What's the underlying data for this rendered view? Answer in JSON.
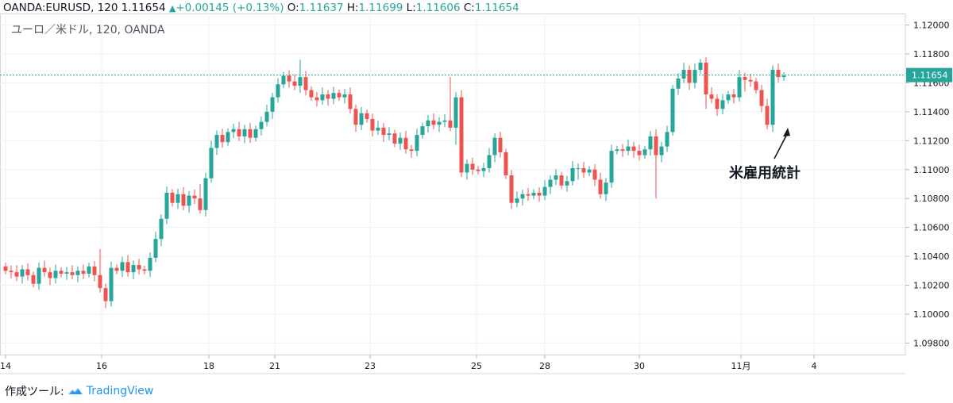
{
  "header": {
    "symbol": "OANDA:EURUSD, 120",
    "last": "1.11654",
    "change": "+0.00145 (+0.13%)",
    "o_label": "O:",
    "o_val": "1.11637",
    "h_label": "H:",
    "h_val": "1.11699",
    "l_label": "L:",
    "l_val": "1.11606",
    "c_label": "C:",
    "c_val": "1.11654"
  },
  "footer": {
    "made_with": "作成ツール:",
    "brand": "TradingView"
  },
  "colors": {
    "up": "#26a69a",
    "down": "#ef5350",
    "grid": "#edf0f5",
    "price_line": "#26a69a",
    "annotation": "#131722"
  },
  "chart_data": {
    "type": "candlestick",
    "title": "ユーロ／米ドル, 120, OANDA",
    "ylim": [
      1.0972,
      1.1208
    ],
    "y_ticks": [
      "1.12000",
      "1.11800",
      "1.11600",
      "1.11400",
      "1.11200",
      "1.11000",
      "1.10800",
      "1.10600",
      "1.10400",
      "1.10200",
      "1.10000",
      "1.09800"
    ],
    "x_ticks": [
      "14",
      "16",
      "18",
      "21",
      "23",
      "25",
      "28",
      "30",
      "11月",
      "4"
    ],
    "last_price": "1.11654",
    "annotation": "米雇用統計",
    "closes": [
      1.103,
      1.1029,
      1.1026,
      1.1031,
      1.1027,
      1.1021,
      1.1032,
      1.1029,
      1.1025,
      1.103,
      1.1028,
      1.1029,
      1.1027,
      1.103,
      1.1028,
      1.1033,
      1.1027,
      1.1018,
      1.1009,
      1.1032,
      1.103,
      1.1036,
      1.1029,
      1.1034,
      1.1031,
      1.103,
      1.1039,
      1.1052,
      1.1066,
      1.1084,
      1.1077,
      1.1083,
      1.1075,
      1.1082,
      1.108,
      1.1072,
      1.1094,
      1.1115,
      1.1124,
      1.1119,
      1.1126,
      1.1128,
      1.1123,
      1.1128,
      1.1122,
      1.1128,
      1.1133,
      1.114,
      1.115,
      1.1159,
      1.1165,
      1.1161,
      1.1158,
      1.1164,
      1.1155,
      1.115,
      1.1148,
      1.1152,
      1.1149,
      1.1153,
      1.115,
      1.1152,
      1.1142,
      1.1131,
      1.1139,
      1.1135,
      1.1127,
      1.1129,
      1.1124,
      1.1125,
      1.1118,
      1.1122,
      1.1114,
      1.1113,
      1.1124,
      1.113,
      1.1134,
      1.1131,
      1.1133,
      1.1134,
      1.1129,
      1.115,
      1.1098,
      1.1104,
      1.11,
      1.1099,
      1.1101,
      1.111,
      1.1122,
      1.1112,
      1.1096,
      1.1077,
      1.108,
      1.1083,
      1.1082,
      1.1084,
      1.1082,
      1.1088,
      1.1093,
      1.1096,
      1.1089,
      1.1092,
      1.1101,
      1.1101,
      1.1098,
      1.11,
      1.1093,
      1.1083,
      1.1091,
      1.1113,
      1.1114,
      1.1113,
      1.1116,
      1.1113,
      1.111,
      1.1114,
      1.1123,
      1.111,
      1.1116,
      1.1126,
      1.1156,
      1.1163,
      1.1169,
      1.116,
      1.1169,
      1.1174,
      1.1152,
      1.1149,
      1.1142,
      1.1148,
      1.1152,
      1.115,
      1.1164,
      1.1162,
      1.1161,
      1.1155,
      1.1144,
      1.1131,
      1.1169,
      1.1164,
      1.1165
    ]
  }
}
